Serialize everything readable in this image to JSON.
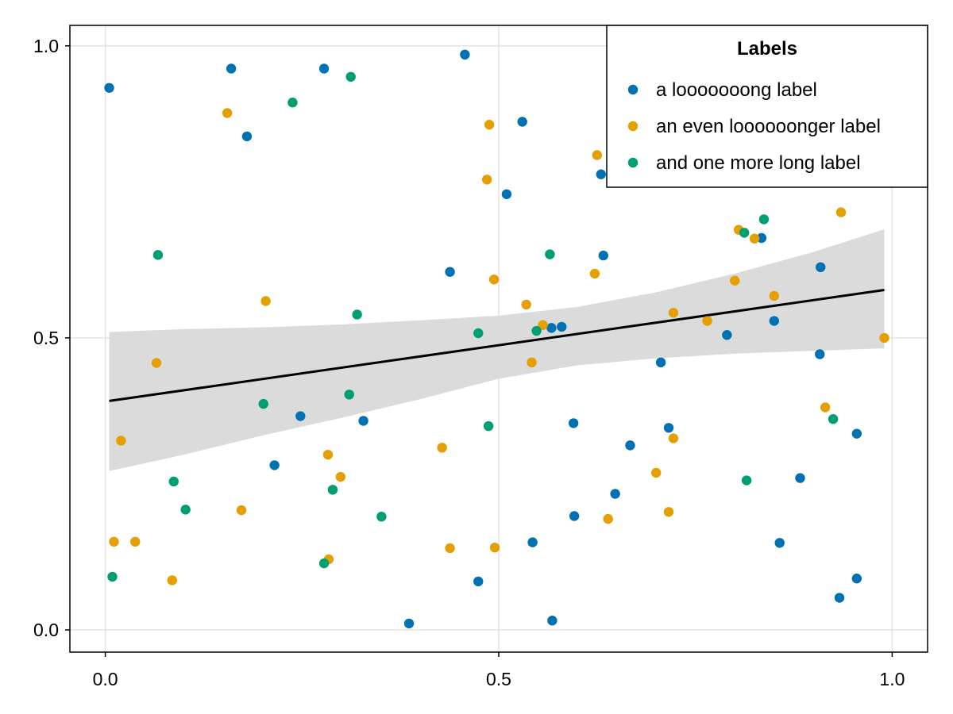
{
  "chart_data": {
    "type": "scatter",
    "title": "",
    "xlabel": "",
    "ylabel": "",
    "xlim": [
      -0.045,
      1.045
    ],
    "ylim": [
      -0.038,
      1.035
    ],
    "xticks": [
      0.0,
      0.5,
      1.0
    ],
    "xtick_labels": [
      "0.0",
      "0.5",
      "1.0"
    ],
    "yticks": [
      0.0,
      0.5,
      1.0
    ],
    "ytick_labels": [
      "0.0",
      "0.5",
      "1.0"
    ],
    "grid": true,
    "legend": {
      "title": "Labels",
      "placement": "top-right"
    },
    "series": [
      {
        "name": "a looooooong label",
        "color": "#0072B2",
        "points": [
          [
            0.005,
            0.928
          ],
          [
            0.16,
            0.961
          ],
          [
            0.18,
            0.845
          ],
          [
            0.215,
            0.282
          ],
          [
            0.248,
            0.366
          ],
          [
            0.278,
            0.961
          ],
          [
            0.328,
            0.358
          ],
          [
            0.386,
            0.011
          ],
          [
            0.438,
            0.613
          ],
          [
            0.457,
            0.985
          ],
          [
            0.474,
            0.083
          ],
          [
            0.51,
            0.746
          ],
          [
            0.53,
            0.87
          ],
          [
            0.543,
            0.15
          ],
          [
            0.567,
            0.517
          ],
          [
            0.568,
            0.016
          ],
          [
            0.58,
            0.519
          ],
          [
            0.595,
            0.354
          ],
          [
            0.596,
            0.195
          ],
          [
            0.63,
            0.78
          ],
          [
            0.633,
            0.641
          ],
          [
            0.648,
            0.233
          ],
          [
            0.667,
            0.316
          ],
          [
            0.706,
            0.458
          ],
          [
            0.716,
            0.346
          ],
          [
            0.79,
            0.505
          ],
          [
            0.834,
            0.671
          ],
          [
            0.85,
            0.529
          ],
          [
            0.857,
            0.149
          ],
          [
            0.883,
            0.26
          ],
          [
            0.908,
            0.472
          ],
          [
            0.909,
            0.621
          ],
          [
            0.933,
            0.055
          ],
          [
            0.955,
            0.088
          ],
          [
            0.955,
            0.336
          ]
        ]
      },
      {
        "name": "an even loooooonger label",
        "color": "#E69F00",
        "points": [
          [
            0.011,
            0.151
          ],
          [
            0.02,
            0.324
          ],
          [
            0.038,
            0.151
          ],
          [
            0.065,
            0.457
          ],
          [
            0.085,
            0.085
          ],
          [
            0.155,
            0.885
          ],
          [
            0.173,
            0.205
          ],
          [
            0.204,
            0.563
          ],
          [
            0.283,
            0.3
          ],
          [
            0.284,
            0.121
          ],
          [
            0.299,
            0.262
          ],
          [
            0.428,
            0.312
          ],
          [
            0.438,
            0.14
          ],
          [
            0.485,
            0.771
          ],
          [
            0.488,
            0.865
          ],
          [
            0.494,
            0.6
          ],
          [
            0.495,
            0.141
          ],
          [
            0.535,
            0.557
          ],
          [
            0.542,
            0.458
          ],
          [
            0.556,
            0.522
          ],
          [
            0.622,
            0.61
          ],
          [
            0.625,
            0.813
          ],
          [
            0.639,
            0.19
          ],
          [
            0.7,
            0.269
          ],
          [
            0.716,
            0.202
          ],
          [
            0.722,
            0.328
          ],
          [
            0.722,
            0.543
          ],
          [
            0.765,
            0.529
          ],
          [
            0.8,
            0.598
          ],
          [
            0.805,
            0.685
          ],
          [
            0.825,
            0.67
          ],
          [
            0.85,
            0.572
          ],
          [
            0.915,
            0.381
          ],
          [
            0.935,
            0.715
          ],
          [
            0.99,
            0.5
          ]
        ]
      },
      {
        "name": "and one more long label",
        "color": "#009E73",
        "points": [
          [
            0.009,
            0.091
          ],
          [
            0.067,
            0.642
          ],
          [
            0.087,
            0.254
          ],
          [
            0.102,
            0.206
          ],
          [
            0.201,
            0.387
          ],
          [
            0.238,
            0.903
          ],
          [
            0.278,
            0.114
          ],
          [
            0.289,
            0.24
          ],
          [
            0.31,
            0.403
          ],
          [
            0.312,
            0.947
          ],
          [
            0.32,
            0.54
          ],
          [
            0.351,
            0.194
          ],
          [
            0.474,
            0.508
          ],
          [
            0.487,
            0.349
          ],
          [
            0.548,
            0.512
          ],
          [
            0.565,
            0.643
          ],
          [
            0.815,
            0.256
          ],
          [
            0.812,
            0.68
          ],
          [
            0.837,
            0.703
          ],
          [
            0.925,
            0.361
          ]
        ]
      }
    ],
    "regression_line": {
      "color": "#000000",
      "x_start": 0.005,
      "x_end": 0.99,
      "y_start": 0.392,
      "y_end": 0.582
    },
    "confidence_band": {
      "color": "#d9d9d9",
      "x": [
        0.005,
        0.1,
        0.2,
        0.3,
        0.4,
        0.5,
        0.6,
        0.7,
        0.8,
        0.9,
        0.99
      ],
      "upper": [
        0.51,
        0.515,
        0.518,
        0.523,
        0.53,
        0.538,
        0.553,
        0.578,
        0.61,
        0.647,
        0.686
      ],
      "lower": [
        0.272,
        0.3,
        0.333,
        0.363,
        0.395,
        0.43,
        0.453,
        0.465,
        0.473,
        0.478,
        0.482
      ]
    }
  }
}
